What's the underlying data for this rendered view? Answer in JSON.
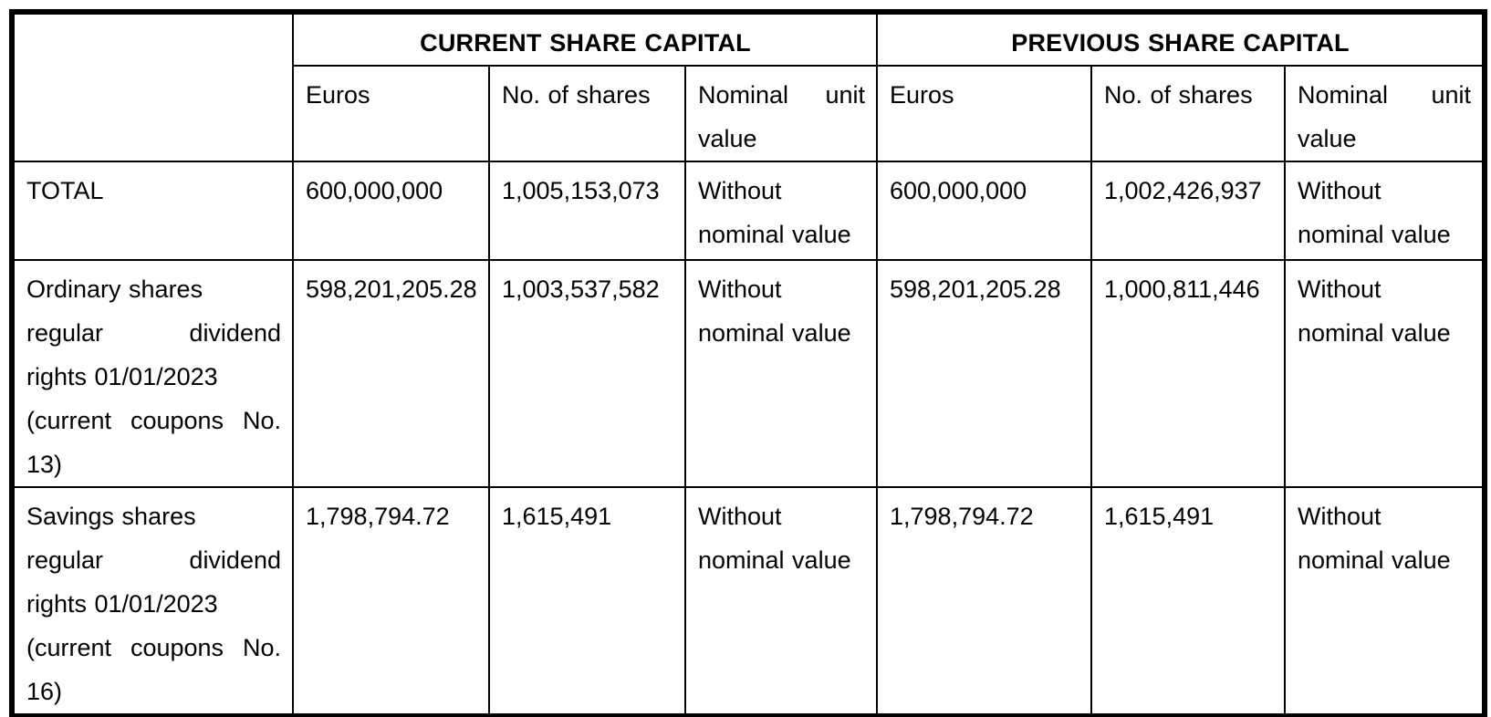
{
  "table": {
    "sections": {
      "current": {
        "title": "CURRENT SHARE CAPITAL"
      },
      "previous": {
        "title": "PREVIOUS SHARE CAPITAL"
      }
    },
    "column_headers": {
      "euros": "Euros",
      "shares": "No. of shares",
      "nominal": [
        {
          "text": "Nominal unit",
          "spread": true
        },
        {
          "text": "value",
          "spread": false
        }
      ]
    },
    "rows": [
      {
        "label": [
          {
            "text": "TOTAL",
            "spread": false
          }
        ],
        "current": {
          "euros": "600,000,000",
          "shares": "1,005,153,073",
          "nominal": [
            {
              "text": "Without",
              "spread": false
            },
            {
              "text": "nominal value",
              "spread": false
            }
          ]
        },
        "previous": {
          "euros": "600,000,000",
          "shares": "1,002,426,937",
          "nominal": [
            {
              "text": "Without",
              "spread": false
            },
            {
              "text": "nominal value",
              "spread": false
            }
          ]
        }
      },
      {
        "label": [
          {
            "text": "Ordinary shares",
            "spread": false
          },
          {
            "text": "regular dividend",
            "spread": true
          },
          {
            "text": "rights 01/01/2023",
            "spread": false
          },
          {
            "text": "(current coupons No.",
            "spread": true
          },
          {
            "text": "13)",
            "spread": false
          }
        ],
        "current": {
          "euros": "598,201,205.28",
          "shares": "1,003,537,582",
          "nominal": [
            {
              "text": "Without",
              "spread": false
            },
            {
              "text": "nominal value",
              "spread": false
            }
          ]
        },
        "previous": {
          "euros": "598,201,205.28",
          "shares": "1,000,811,446",
          "nominal": [
            {
              "text": "Without",
              "spread": false
            },
            {
              "text": "nominal value",
              "spread": false
            }
          ]
        }
      },
      {
        "label": [
          {
            "text": "Savings shares",
            "spread": false
          },
          {
            "text": "regular dividend",
            "spread": true
          },
          {
            "text": "rights 01/01/2023",
            "spread": false
          },
          {
            "text": "(current coupons No.",
            "spread": true
          },
          {
            "text": "16)",
            "spread": false
          }
        ],
        "current": {
          "euros": "1,798,794.72",
          "shares": "1,615,491",
          "nominal": [
            {
              "text": "Without",
              "spread": false
            },
            {
              "text": "nominal value",
              "spread": false
            }
          ]
        },
        "previous": {
          "euros": "1,798,794.72",
          "shares": "1,615,491",
          "nominal": [
            {
              "text": "Without",
              "spread": false
            },
            {
              "text": "nominal value",
              "spread": false
            }
          ]
        }
      }
    ]
  },
  "colors": {
    "border": "#000000",
    "text": "#000000",
    "background": "#ffffff"
  }
}
